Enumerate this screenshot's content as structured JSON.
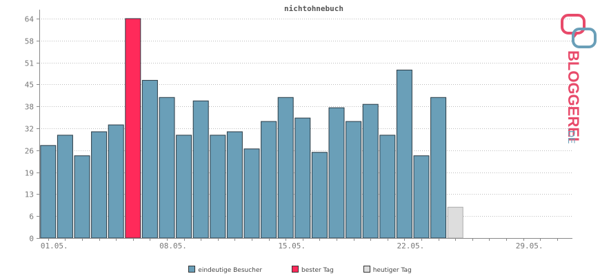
{
  "chart_data": {
    "type": "bar",
    "title": "nichtohnebuch",
    "xlabel": "",
    "ylabel": "",
    "ylim": [
      0,
      65
    ],
    "yticks": [
      "0",
      "6",
      "13",
      "19",
      "26",
      "32",
      "38",
      "45",
      "51",
      "58",
      "64"
    ],
    "ytick_values": [
      0,
      6.4,
      12.8,
      19.2,
      25.6,
      32,
      38.4,
      44.8,
      51.2,
      57.6,
      64
    ],
    "xtick_labels": [
      {
        "day": 1,
        "label": "01.05."
      },
      {
        "day": 8,
        "label": "08.05."
      },
      {
        "day": 15,
        "label": "15.05."
      },
      {
        "day": 22,
        "label": "22.05."
      },
      {
        "day": 29,
        "label": "29.05."
      }
    ],
    "days": 31,
    "grid": true,
    "legend_position": "bottom",
    "series": [
      {
        "name": "eindeutige Besucher",
        "color": "#6a9fb8",
        "points": [
          {
            "day": 1,
            "value": 27
          },
          {
            "day": 2,
            "value": 30
          },
          {
            "day": 3,
            "value": 24
          },
          {
            "day": 4,
            "value": 31
          },
          {
            "day": 5,
            "value": 33
          },
          {
            "day": 7,
            "value": 46
          },
          {
            "day": 8,
            "value": 41
          },
          {
            "day": 9,
            "value": 30
          },
          {
            "day": 10,
            "value": 40
          },
          {
            "day": 11,
            "value": 30
          },
          {
            "day": 12,
            "value": 31
          },
          {
            "day": 13,
            "value": 26
          },
          {
            "day": 14,
            "value": 34
          },
          {
            "day": 15,
            "value": 41
          },
          {
            "day": 16,
            "value": 35
          },
          {
            "day": 17,
            "value": 25
          },
          {
            "day": 18,
            "value": 38
          },
          {
            "day": 19,
            "value": 34
          },
          {
            "day": 20,
            "value": 39
          },
          {
            "day": 21,
            "value": 30
          },
          {
            "day": 22,
            "value": 49
          },
          {
            "day": 23,
            "value": 24
          },
          {
            "day": 24,
            "value": 41
          }
        ]
      },
      {
        "name": "bester Tag",
        "color": "#ff2a5a",
        "points": [
          {
            "day": 6,
            "value": 64
          }
        ]
      },
      {
        "name": "heutiger Tag",
        "color": "#dddddd",
        "points": [
          {
            "day": 25,
            "value": 9
          }
        ]
      }
    ]
  },
  "brand": {
    "text_main": "BLOGGEREI",
    "text_suffix": ".DE",
    "color_main": "#e84a6a",
    "color_suffix": "#6a9fb8"
  }
}
